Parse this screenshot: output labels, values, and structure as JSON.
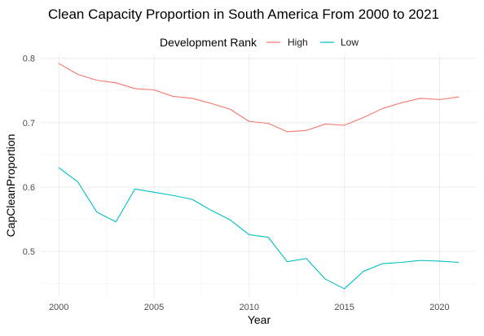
{
  "chart_data": {
    "type": "line",
    "title": "Clean Capacity Proportion in South America From 2000 to 2021",
    "xlabel": "Year",
    "ylabel": "CapCleanProportion",
    "legend": {
      "title": "Development Rank",
      "placement": "top"
    },
    "xlim": [
      1999.05,
      2021.95
    ],
    "ylim": [
      0.428,
      0.806
    ],
    "x_ticks": [
      2000,
      2005,
      2010,
      2015,
      2020
    ],
    "x_tick_labels": [
      "2000",
      "2005",
      "2010",
      "2015",
      "2020"
    ],
    "y_ticks": [
      0.5,
      0.6,
      0.7,
      0.8
    ],
    "y_tick_labels": [
      "0.5",
      "0.6",
      "0.7",
      "0.8"
    ],
    "grid": true,
    "x": [
      2000,
      2001,
      2002,
      2003,
      2004,
      2005,
      2006,
      2007,
      2008,
      2009,
      2010,
      2011,
      2012,
      2013,
      2014,
      2015,
      2016,
      2017,
      2018,
      2019,
      2020,
      2021
    ],
    "series": [
      {
        "name": "High",
        "color": "#F8766D",
        "values": [
          0.792,
          0.775,
          0.766,
          0.762,
          0.753,
          0.751,
          0.741,
          0.738,
          0.73,
          0.721,
          0.702,
          0.699,
          0.686,
          0.688,
          0.698,
          0.696,
          0.708,
          0.722,
          0.731,
          0.738,
          0.736,
          0.74
        ]
      },
      {
        "name": "Low",
        "color": "#00BFC4",
        "values": [
          0.63,
          0.608,
          0.561,
          0.546,
          0.597,
          0.592,
          0.587,
          0.581,
          0.564,
          0.549,
          0.526,
          0.522,
          0.484,
          0.489,
          0.457,
          0.442,
          0.469,
          0.481,
          0.483,
          0.486,
          0.485,
          0.483
        ]
      }
    ]
  }
}
